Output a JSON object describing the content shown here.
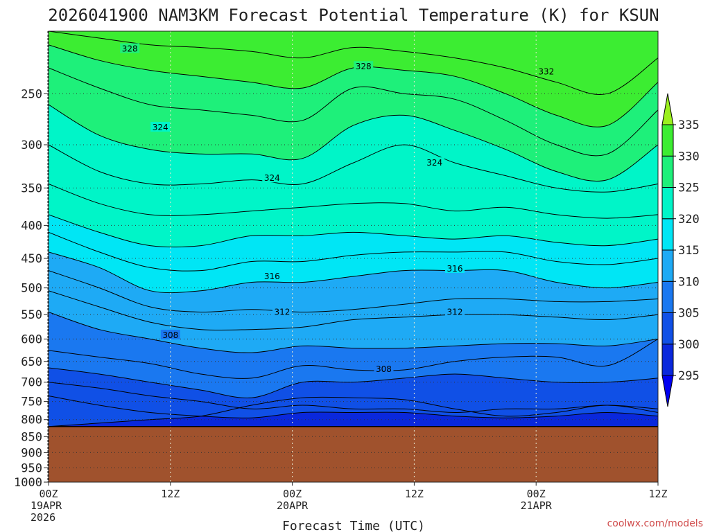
{
  "chart_data": {
    "type": "contour",
    "title": "2026041900 NAM3KM Forecast Potential Temperature (K) for KSUN",
    "xlabel": "Forecast Time (UTC)",
    "ylabel": "",
    "y_axis": "pressure (hPa), log-scale, inverted",
    "ylim": [
      1000,
      200
    ],
    "y_ticks": [
      250,
      300,
      350,
      400,
      450,
      500,
      550,
      600,
      650,
      700,
      750,
      800,
      850,
      900,
      950,
      1000
    ],
    "x_ticks": [
      {
        "hour": 0,
        "line1": "00Z",
        "line2": "19APR",
        "line3": "2026"
      },
      {
        "hour": 12,
        "line1": "12Z",
        "line2": "",
        "line3": ""
      },
      {
        "hour": 24,
        "line1": "00Z",
        "line2": "20APR",
        "line3": ""
      },
      {
        "hour": 36,
        "line1": "12Z",
        "line2": "",
        "line3": ""
      },
      {
        "hour": 48,
        "line1": "00Z",
        "line2": "21APR",
        "line3": ""
      },
      {
        "hour": 60,
        "line1": "12Z",
        "line2": "",
        "line3": ""
      }
    ],
    "xlim_hours": [
      0,
      60
    ],
    "surface_pressure_hpa": 820,
    "ground_color": "#a0522d",
    "colorbar": {
      "levels": [
        295,
        300,
        305,
        310,
        315,
        320,
        325,
        330,
        335
      ],
      "colors": [
        "#0000f0",
        "#0a28dc",
        "#1050e6",
        "#1a78f0",
        "#1eaaf5",
        "#00e6f5",
        "#00f5c8",
        "#1ef07a",
        "#3ced32",
        "#9bf01e"
      ]
    },
    "contour_interval_K": 2,
    "contour_labels": [
      {
        "value": "328",
        "hour": 8,
        "p": 213
      },
      {
        "value": "328",
        "hour": 31,
        "p": 227
      },
      {
        "value": "332",
        "hour": 49,
        "p": 231
      },
      {
        "value": "324",
        "hour": 11,
        "p": 282
      },
      {
        "value": "324",
        "hour": 38,
        "p": 320
      },
      {
        "value": "324",
        "hour": 22,
        "p": 338
      },
      {
        "value": "316",
        "hour": 22,
        "p": 480
      },
      {
        "value": "316",
        "hour": 40,
        "p": 467
      },
      {
        "value": "312",
        "hour": 23,
        "p": 545
      },
      {
        "value": "312",
        "hour": 40,
        "p": 545
      },
      {
        "value": "308",
        "hour": 12,
        "p": 592
      },
      {
        "value": "308",
        "hour": 33,
        "p": 668
      }
    ],
    "isentropes_K": [
      {
        "theta": 300,
        "p": [
          820,
          810,
          800,
          790,
          760,
          740,
          740,
          745,
          770,
          790,
          780,
          760,
          780
        ]
      },
      {
        "theta": 302,
        "p": [
          735,
          760,
          780,
          790,
          795,
          780,
          780,
          780,
          790,
          795,
          790,
          780,
          790
        ]
      },
      {
        "theta": 304,
        "p": [
          700,
          715,
          735,
          750,
          770,
          760,
          770,
          770,
          780,
          770,
          770,
          760,
          770
        ]
      },
      {
        "theta": 306,
        "p": [
          665,
          680,
          700,
          720,
          740,
          700,
          700,
          690,
          680,
          690,
          700,
          700,
          690
        ]
      },
      {
        "theta": 308,
        "p": [
          625,
          640,
          655,
          680,
          690,
          660,
          670,
          670,
          650,
          640,
          640,
          660,
          600
        ]
      },
      {
        "theta": 310,
        "p": [
          545,
          580,
          600,
          620,
          630,
          615,
          620,
          620,
          615,
          610,
          610,
          615,
          600
        ]
      },
      {
        "theta": 312,
        "p": [
          505,
          535,
          565,
          580,
          580,
          575,
          560,
          555,
          550,
          550,
          555,
          560,
          550
        ]
      },
      {
        "theta": 314,
        "p": [
          470,
          500,
          535,
          545,
          540,
          545,
          540,
          530,
          520,
          520,
          525,
          525,
          520
        ]
      },
      {
        "theta": 316,
        "p": [
          440,
          465,
          505,
          505,
          490,
          490,
          480,
          470,
          470,
          470,
          490,
          500,
          490
        ]
      },
      {
        "theta": 318,
        "p": [
          410,
          440,
          465,
          470,
          455,
          455,
          445,
          440,
          440,
          440,
          455,
          460,
          450
        ]
      },
      {
        "theta": 320,
        "p": [
          385,
          410,
          430,
          430,
          415,
          415,
          410,
          415,
          420,
          415,
          425,
          430,
          420
        ]
      },
      {
        "theta": 322,
        "p": [
          345,
          370,
          385,
          385,
          380,
          375,
          370,
          370,
          380,
          375,
          385,
          390,
          385
        ]
      },
      {
        "theta": 324,
        "p": [
          300,
          330,
          345,
          345,
          340,
          345,
          320,
          300,
          320,
          335,
          350,
          355,
          345
        ]
      },
      {
        "theta": 326,
        "p": [
          260,
          290,
          305,
          310,
          310,
          315,
          280,
          270,
          285,
          305,
          330,
          340,
          300
        ]
      },
      {
        "theta": 328,
        "p": [
          228,
          245,
          260,
          265,
          270,
          275,
          245,
          250,
          255,
          275,
          300,
          310,
          265
        ]
      },
      {
        "theta": 330,
        "p": [
          210,
          222,
          230,
          235,
          240,
          245,
          228,
          230,
          235,
          250,
          270,
          280,
          240
        ]
      },
      {
        "theta": 332,
        "p": [
          200,
          205,
          210,
          212,
          215,
          220,
          212,
          215,
          220,
          228,
          240,
          250,
          220
        ]
      }
    ]
  },
  "credit": "coolwx.com/models"
}
